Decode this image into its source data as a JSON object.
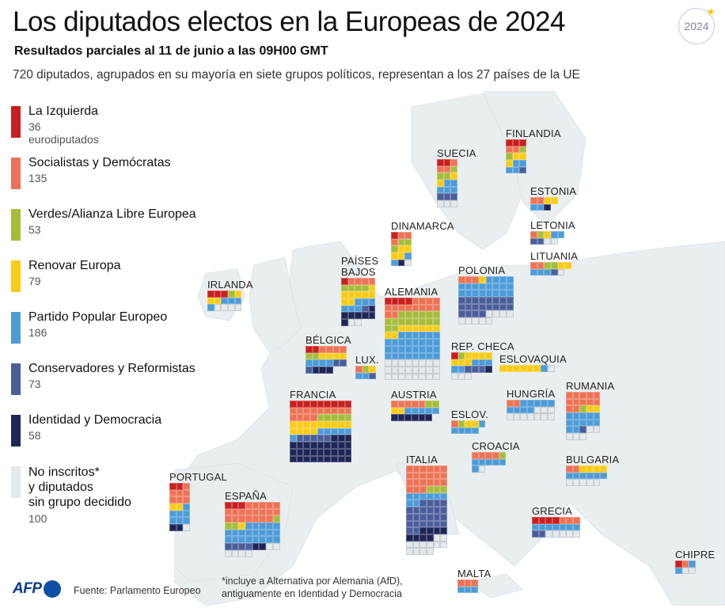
{
  "header": {
    "title": "Los diputados electos en la Europeas de 2024",
    "subtitle": "Resultados parciales al 11 de junio a las 09H00 GMT",
    "description": "720 diputados, agrupados en su mayoría en siete grupos políticos, representan a los 27 países de la UE",
    "badge": "2024",
    "badge_icon": "star-icon"
  },
  "colors": {
    "L": "#c8201f",
    "S": "#ee7356",
    "G": "#a6bd3c",
    "R": "#f9cb19",
    "P": "#4d9bd7",
    "C": "#4a5e9a",
    "ID": "#1e2657",
    "NI": "#e4e9ec"
  },
  "chart_data": {
    "type": "waffle-map",
    "title": "Los diputados electos en la Europeas de 2024",
    "legend": [
      {
        "key": "L",
        "label": "La Izquierda",
        "count": "36 eurodiputados"
      },
      {
        "key": "S",
        "label": "Socialistas y Demócratas",
        "count": "135"
      },
      {
        "key": "G",
        "label": "Verdes/Alianza Libre Europea",
        "count": "53"
      },
      {
        "key": "R",
        "label": "Renovar Europa",
        "count": "79"
      },
      {
        "key": "P",
        "label": "Partido Popular Europeo",
        "count": "186"
      },
      {
        "key": "C",
        "label": "Conservadores y Reformistas",
        "count": "73"
      },
      {
        "key": "ID",
        "label": "Identidad y Democracia",
        "count": "58"
      },
      {
        "key": "NI",
        "label": "No inscritos*\ny diputados\nsin grupo decidido",
        "count": "100"
      }
    ],
    "countries": [
      {
        "name": "FINLANDIA",
        "cols": 3,
        "seats": {
          "L": 3,
          "S": 2,
          "G": 2,
          "R": 3,
          "P": 4,
          "C": 1
        }
      },
      {
        "name": "SUECIA",
        "cols": 3,
        "seats": {
          "L": 2,
          "S": 3,
          "G": 3,
          "R": 2,
          "P": 5,
          "C": 3,
          "NI": 3
        }
      },
      {
        "name": "ESTONIA",
        "cols": 4,
        "seats": {
          "S": 2,
          "R": 2,
          "P": 2,
          "ID": 1
        }
      },
      {
        "name": "LETONIA",
        "cols": 5,
        "seats": {
          "S": 1,
          "G": 1,
          "R": 1,
          "P": 2,
          "C": 2,
          "NI": 2
        }
      },
      {
        "name": "LITUANIA",
        "cols": 6,
        "seats": {
          "S": 2,
          "G": 2,
          "R": 2,
          "P": 3,
          "C": 1,
          "NI": 1
        }
      },
      {
        "name": "DINAMARCA",
        "cols": 3,
        "seats": {
          "L": 1,
          "S": 3,
          "G": 3,
          "R": 4,
          "P": 2,
          "ID": 1,
          "NI": 1
        }
      },
      {
        "name": "PAÍSES\nBAJOS",
        "cols": 5,
        "seats": {
          "L": 1,
          "S": 4,
          "G": 4,
          "R": 8,
          "P": 6,
          "C": 1,
          "ID": 7,
          "NI": 2
        }
      },
      {
        "name": "IRLANDA",
        "cols": 5,
        "seats": {
          "L": 3,
          "G": 1,
          "R": 3,
          "P": 4,
          "NI": 4
        }
      },
      {
        "name": "ALEMANIA",
        "cols": 8,
        "seats": {
          "L": 4,
          "S": 14,
          "G": 16,
          "R": 8,
          "P": 30,
          "NI": 24
        }
      },
      {
        "name": "POLONIA",
        "cols": 8,
        "seats": {
          "S": 3,
          "R": 1,
          "P": 20,
          "C": 20,
          "NI": 9
        }
      },
      {
        "name": "BÉLGICA",
        "cols": 6,
        "seats": {
          "L": 2,
          "S": 4,
          "G": 2,
          "R": 4,
          "P": 4,
          "C": 3,
          "ID": 3,
          "NI": 0
        }
      },
      {
        "name": "LUX.",
        "cols": 3,
        "seats": {
          "S": 1,
          "G": 1,
          "R": 1,
          "P": 2,
          "C": 1
        }
      },
      {
        "name": "REP. CHECA",
        "cols": 6,
        "seats": {
          "L": 1,
          "G": 1,
          "R": 7,
          "P": 5,
          "C": 3,
          "ID": 1,
          "NI": 3
        }
      },
      {
        "name": "ESLOVAQUIA",
        "cols": 8,
        "seats": {
          "R": 6,
          "NI": 1,
          "P": 1,
          "S": 0
        }
      },
      {
        "name": "FRANCIA",
        "cols": 9,
        "seats": {
          "L": 9,
          "S": 13,
          "G": 5,
          "R": 13,
          "P": 6,
          "C": 5,
          "ID": 30
        }
      },
      {
        "name": "AUSTRIA",
        "cols": 7,
        "seats": {
          "S": 5,
          "G": 2,
          "R": 2,
          "P": 5,
          "ID": 6
        }
      },
      {
        "name": "HUNGRÍA",
        "cols": 7,
        "seats": {
          "S": 2,
          "P": 9,
          "NI": 10
        }
      },
      {
        "name": "RUMANIA",
        "cols": 5,
        "seats": {
          "S": 12,
          "G": 1,
          "R": 2,
          "P": 12,
          "C": 1,
          "NI": 5
        }
      },
      {
        "name": "ESLOV.",
        "cols": 5,
        "seats": {
          "S": 1,
          "G": 1,
          "R": 2,
          "P": 5
        }
      },
      {
        "name": "CROACIA",
        "cols": 5,
        "seats": {
          "S": 4,
          "G": 1,
          "P": 6,
          "NI": 1
        }
      },
      {
        "name": "BULGARIA",
        "cols": 6,
        "seats": {
          "S": 2,
          "R": 4,
          "P": 6,
          "NI": 5
        }
      },
      {
        "name": "PORTUGAL",
        "cols": 3,
        "seats": {
          "L": 2,
          "S": 7,
          "R": 2,
          "P": 7,
          "ID": 2,
          "NI": 1
        }
      },
      {
        "name": "ESPAÑA",
        "cols": 8,
        "seats": {
          "L": 3,
          "S": 20,
          "G": 3,
          "R": 1,
          "P": 21,
          "C": 4,
          "ID": 2,
          "NI": 6
        }
      },
      {
        "name": "ITALIA",
        "cols": 6,
        "seats": {
          "S": 21,
          "G": 3,
          "P": 8,
          "C": 24,
          "ID": 8,
          "NI": 12
        }
      },
      {
        "name": "GRECIA",
        "cols": 7,
        "seats": {
          "L": 4,
          "S": 3,
          "P": 7,
          "C": 2,
          "NI": 5
        }
      },
      {
        "name": "CHIPRE",
        "cols": 3,
        "seats": {
          "L": 1,
          "S": 1,
          "P": 2,
          "NI": 2
        }
      },
      {
        "name": "MALTA",
        "cols": 3,
        "seats": {
          "S": 3,
          "P": 3
        }
      }
    ]
  },
  "footer": {
    "logo": "AFP",
    "source": "Fuente: Parlamento Europeo",
    "note": "*incluye a Alternativa por Alemania (AfD),\nantiguamente en Identidad y Democracia"
  }
}
